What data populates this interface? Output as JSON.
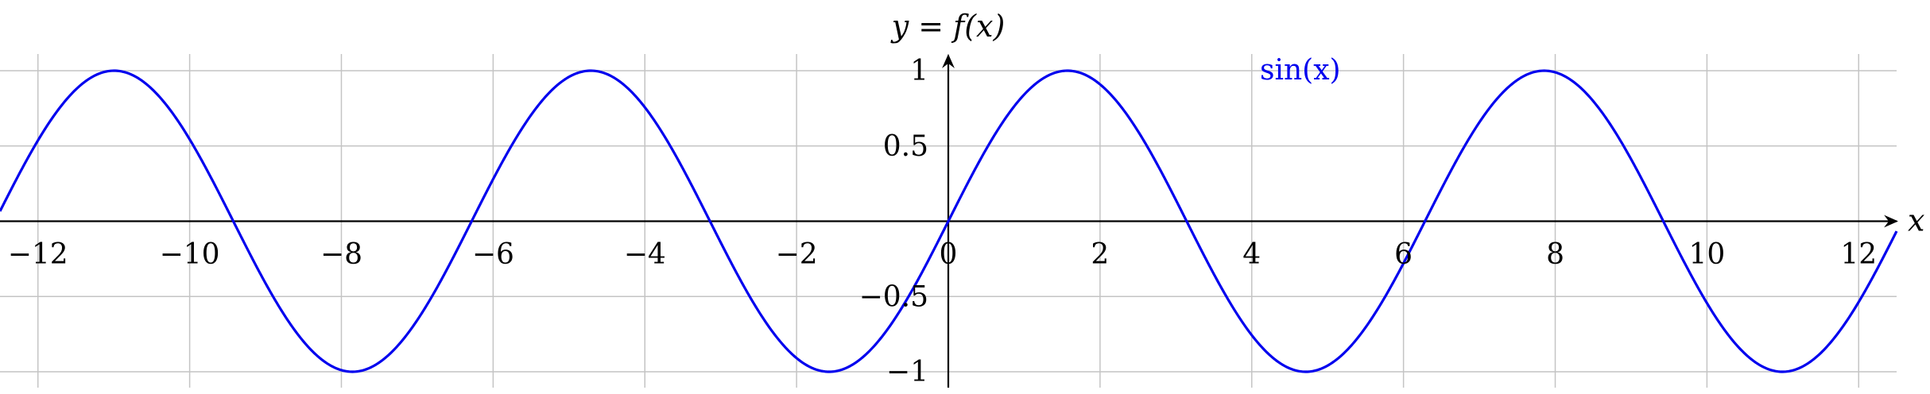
{
  "chart_data": {
    "type": "line",
    "title": "",
    "xlabel": "x",
    "ylabel": "y = f(x)",
    "xlim": [
      -12.5,
      12.5
    ],
    "ylim": [
      -1,
      1
    ],
    "x_ticks": [
      -12,
      -10,
      -8,
      -6,
      -4,
      -2,
      0,
      2,
      4,
      6,
      8,
      10,
      12
    ],
    "x_tick_labels": [
      "−12",
      "−10",
      "−8",
      "−6",
      "−4",
      "−2",
      "0",
      "2",
      "4",
      "6",
      "8",
      "10",
      "12"
    ],
    "y_ticks": [
      -1,
      -0.5,
      0.5,
      1
    ],
    "y_tick_labels": [
      "−1",
      "−0.5",
      "0.5",
      "1"
    ],
    "grid": true,
    "legend": {
      "placement": "top",
      "entries": [
        "sin(x)"
      ]
    },
    "series": [
      {
        "name": "sin(x)",
        "color": "#0000ee",
        "function": "sin(x)",
        "x": [
          -12.5,
          -12,
          -11.5,
          -11,
          -10.5,
          -10,
          -9.5,
          -9,
          -8.5,
          -8,
          -7.5,
          -7,
          -6.5,
          -6,
          -5.5,
          -5,
          -4.5,
          -4,
          -3.5,
          -3,
          -2.5,
          -2,
          -1.5,
          -1,
          -0.5,
          0,
          0.5,
          1,
          1.5,
          2,
          2.5,
          3,
          3.5,
          4,
          4.5,
          5,
          5.5,
          6,
          6.5,
          7,
          7.5,
          8,
          8.5,
          9,
          9.5,
          10,
          10.5,
          11,
          11.5,
          12,
          12.5
        ],
        "y": [
          0.066,
          0.537,
          0.875,
          1.0,
          0.88,
          0.544,
          0.075,
          -0.412,
          -0.798,
          -0.989,
          -0.938,
          -0.657,
          -0.215,
          0.279,
          0.706,
          0.959,
          0.978,
          0.757,
          0.351,
          -0.141,
          -0.598,
          -0.909,
          -0.997,
          -0.841,
          -0.479,
          0.0,
          0.479,
          0.841,
          0.997,
          0.909,
          0.598,
          0.141,
          -0.351,
          -0.757,
          -0.978,
          -0.959,
          -0.706,
          -0.279,
          0.215,
          0.657,
          0.938,
          0.989,
          0.798,
          0.412,
          -0.075,
          -0.544,
          -0.88,
          -1.0,
          -0.875,
          -0.537,
          -0.066
        ]
      }
    ]
  }
}
